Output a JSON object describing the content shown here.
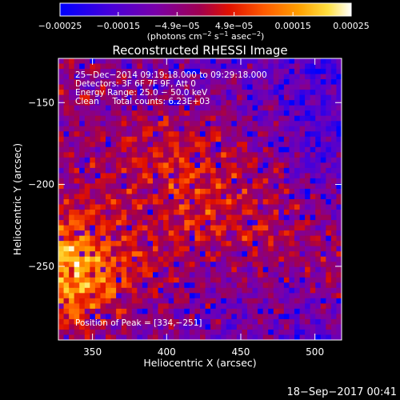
{
  "chart_data": {
    "type": "heatmap",
    "title": "Reconstructed RHESSI Image",
    "xlabel": "Heliocentric X (arcsec)",
    "ylabel": "Heliocentric Y (arcsec)",
    "xlim": [
      327,
      518
    ],
    "ylim": [
      -295,
      -123
    ],
    "x_ticks": [
      {
        "value": 350,
        "label": "350"
      },
      {
        "value": 400,
        "label": "400"
      },
      {
        "value": 450,
        "label": "450"
      },
      {
        "value": 500,
        "label": "500"
      }
    ],
    "y_ticks": [
      {
        "value": -150,
        "label": "−150"
      },
      {
        "value": -200,
        "label": "−200"
      },
      {
        "value": -250,
        "label": "−250"
      }
    ],
    "colorbar": {
      "colormap": "blue-purple-red-orange-yellow-white",
      "range": [
        -0.00025,
        0.00025
      ],
      "unit_main": "(photons cm",
      "unit_exp1": "−2",
      "unit_mid": " s",
      "unit_exp2": "−1",
      "unit_mid2": " asec",
      "unit_exp3": "−2",
      "unit_end": ")",
      "ticks": [
        {
          "value": -0.00025,
          "label": "−0.00025"
        },
        {
          "value": -0.00015,
          "label": "−0.00015"
        },
        {
          "value": -4.9e-05,
          "label": "−4.9e−05"
        },
        {
          "value": 4.9e-05,
          "label": "4.9e−05"
        },
        {
          "value": 0.00015,
          "label": "0.00015"
        },
        {
          "value": 0.00025,
          "label": "0.00025"
        }
      ]
    },
    "annotations": [
      "25−Dec−2014 09:19:18.000 to 09:29:18.000",
      "Detectors: 3F 6F 7F 9F, Att 0",
      "Energy Range: 25.0 − 50.0 keV",
      "Clean     Total counts: 6.23E+03"
    ],
    "peak_label": "Position of Peak = [334,−251]",
    "peak": [
      334,
      -251
    ],
    "image_description": "Mottled RHESSI CLEAN image; bright emission (orange/yellow/white) concentrated in the lower-left toward the peak, a red/orange band across the middle, and mostly purple/blue background in the upper-left and right regions."
  },
  "footer": {
    "timestamp": "18−Sep−2017 00:41"
  }
}
